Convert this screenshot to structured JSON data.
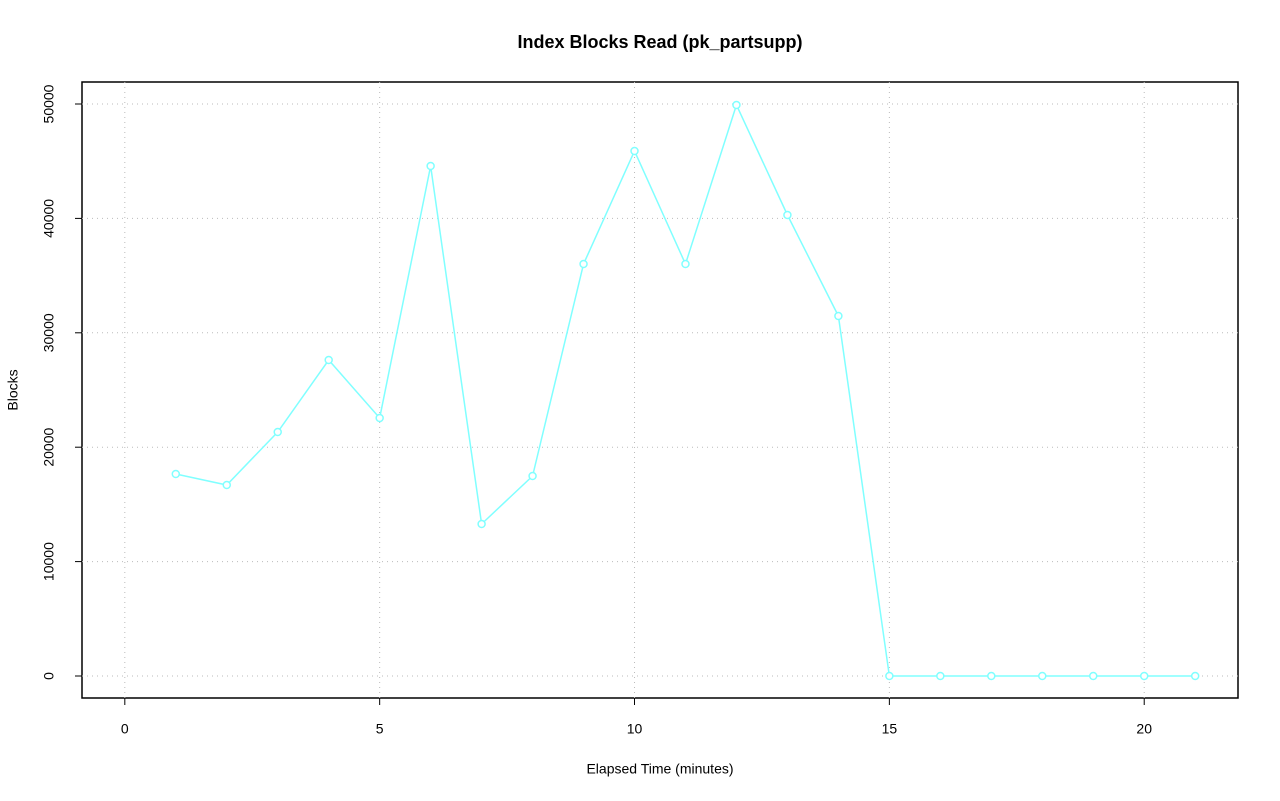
{
  "chart_data": {
    "type": "line",
    "title": "Index Blocks Read (pk_partsupp)",
    "x_label": "Elapsed Time (minutes)",
    "y_label": "Blocks",
    "x": [
      1,
      2,
      3,
      4,
      5,
      6,
      7,
      8,
      9,
      10,
      11,
      12,
      13,
      14,
      15,
      16,
      17,
      18,
      19,
      20,
      21
    ],
    "series": [
      {
        "name": "pk_partsupp",
        "color": "#80ffff",
        "values": [
          17657,
          16696,
          21329,
          27622,
          22552,
          44580,
          13287,
          17483,
          36014,
          45892,
          36014,
          49913,
          40297,
          31469,
          0,
          0,
          0,
          0,
          0,
          0,
          0
        ]
      }
    ],
    "xlim": [
      -0.84,
      21.84
    ],
    "xticks": [
      0,
      5,
      10,
      15,
      20
    ],
    "ylim": [
      -1923,
      51923
    ],
    "yticks": [
      0,
      10000,
      20000,
      30000,
      40000,
      50000
    ],
    "grid": true
  }
}
